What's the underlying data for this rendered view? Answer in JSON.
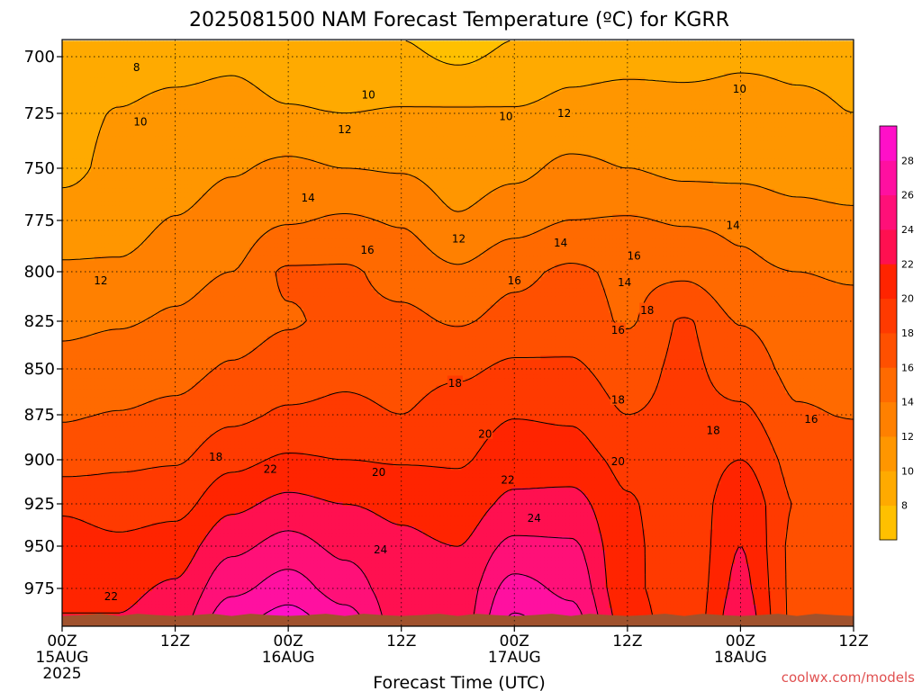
{
  "title": "2025081500 NAM Forecast Temperature (ºC) for KGRR",
  "credit": "coolwx.com/models",
  "chart_data": {
    "type": "heatmap",
    "title": "2025081500 NAM Forecast Temperature (ºC) for KGRR",
    "xlabel": "Forecast Time (UTC)",
    "ylabel": "",
    "x_range_hours": [
      0,
      84
    ],
    "y_range_hpa": [
      693,
      997
    ],
    "y_scale": "reversed-pressure",
    "grid": true,
    "y_ticks": [
      700,
      725,
      750,
      775,
      800,
      825,
      850,
      875,
      900,
      925,
      950,
      975
    ],
    "x_ticks": [
      {
        "hour": 0,
        "label": "00Z",
        "sub": "15AUG",
        "sub2": "2025"
      },
      {
        "hour": 12,
        "label": "12Z",
        "sub": "",
        "sub2": ""
      },
      {
        "hour": 24,
        "label": "00Z",
        "sub": "16AUG",
        "sub2": ""
      },
      {
        "hour": 36,
        "label": "12Z",
        "sub": "",
        "sub2": ""
      },
      {
        "hour": 48,
        "label": "00Z",
        "sub": "17AUG",
        "sub2": ""
      },
      {
        "hour": 60,
        "label": "12Z",
        "sub": "",
        "sub2": ""
      },
      {
        "hour": 72,
        "label": "00Z",
        "sub": "18AUG",
        "sub2": ""
      },
      {
        "hour": 84,
        "label": "12Z",
        "sub": "",
        "sub2": ""
      }
    ],
    "colorbar": {
      "levels": [
        6,
        8,
        10,
        12,
        14,
        16,
        18,
        20,
        22,
        24,
        26,
        28,
        30
      ],
      "labels": [
        "8",
        "10",
        "12",
        "14",
        "16",
        "18",
        "20",
        "22",
        "24",
        "26",
        "28"
      ],
      "colors": [
        "#ffc000",
        "#ffaa00",
        "#ff9600",
        "#ff8000",
        "#ff6a00",
        "#ff5000",
        "#ff3a00",
        "#ff2400",
        "#ff1050",
        "#ff1078",
        "#ff10a0",
        "#ff10c8"
      ]
    },
    "profile_levels_hpa": [
      700,
      725,
      750,
      775,
      800,
      825,
      850,
      875,
      900,
      925,
      950,
      975,
      990
    ],
    "profiles": [
      {
        "hour": 0,
        "temps": [
          9.3,
          9.2,
          9.4,
          11.0,
          12.3,
          13.5,
          14.7,
          15.8,
          17.0,
          19.6,
          21.0,
          21.5,
          22.0
        ]
      },
      {
        "hour": 6,
        "temps": [
          9.2,
          10.1,
          10.6,
          11.0,
          12.4,
          13.8,
          15.0,
          16.1,
          17.6,
          19.0,
          20.5,
          21.5,
          22.0
        ]
      },
      {
        "hour": 12,
        "temps": [
          9.3,
          10.6,
          11.0,
          12.1,
          13.3,
          14.3,
          15.3,
          16.5,
          17.8,
          19.3,
          21.0,
          22.3,
          23.0
        ]
      },
      {
        "hour": 18,
        "temps": [
          9.6,
          10.8,
          11.8,
          13.0,
          14.0,
          15.1,
          16.2,
          17.5,
          19.4,
          21.5,
          23.5,
          25.5,
          27.0
        ]
      },
      {
        "hour": 24,
        "temps": [
          9.0,
          10.2,
          12.5,
          13.8,
          16.3,
          15.8,
          16.9,
          18.3,
          20.3,
          22.6,
          24.8,
          27.0,
          28.5
        ]
      },
      {
        "hour": 30,
        "temps": [
          8.6,
          10.0,
          12.0,
          14.3,
          16.3,
          16.6,
          17.5,
          18.5,
          20.0,
          22.0,
          23.5,
          25.0,
          26.5
        ]
      },
      {
        "hour": 36,
        "temps": [
          8.5,
          10.2,
          11.8,
          13.8,
          15.2,
          16.5,
          17.3,
          18.0,
          19.8,
          21.5,
          22.5,
          22.8,
          23.0
        ]
      },
      {
        "hour": 42,
        "temps": [
          7.6,
          10.3,
          11.0,
          12.2,
          14.3,
          15.8,
          17.6,
          19.0,
          19.8,
          20.8,
          22.0,
          22.8,
          23.0
        ]
      },
      {
        "hour": 48,
        "temps": [
          8.5,
          10.2,
          11.5,
          13.2,
          15.5,
          16.7,
          18.4,
          19.9,
          21.0,
          22.5,
          24.5,
          26.8,
          28.0
        ]
      },
      {
        "hour": 54,
        "temps": [
          9.3,
          10.6,
          12.5,
          14.0,
          16.4,
          17.1,
          18.3,
          19.7,
          20.9,
          22.7,
          24.3,
          25.5,
          26.5
        ]
      },
      {
        "hour": 60,
        "temps": [
          9.4,
          10.9,
          12.0,
          14.2,
          15.5,
          15.8,
          17.0,
          18.0,
          19.5,
          20.2,
          20.5,
          20.5,
          21.0
        ]
      },
      {
        "hour": 66,
        "temps": [
          9.5,
          10.6,
          11.4,
          13.8,
          15.5,
          18.2,
          18.5,
          18.6,
          18.5,
          18.4,
          18.3,
          18.4,
          18.5
        ]
      },
      {
        "hour": 72,
        "temps": [
          9.8,
          10.5,
          11.3,
          13.7,
          14.3,
          15.9,
          17.0,
          18.4,
          20.0,
          21.5,
          22.0,
          22.5,
          23.0
        ]
      },
      {
        "hour": 78,
        "temps": [
          9.8,
          10.2,
          10.9,
          12.9,
          14.0,
          15.0,
          15.5,
          16.2,
          17.3,
          17.9,
          17.5,
          17.5,
          17.5
        ]
      },
      {
        "hour": 84,
        "temps": [
          9.8,
          10.0,
          10.5,
          12.6,
          13.7,
          14.8,
          15.3,
          15.9,
          16.9,
          17.5,
          17.0,
          17.0,
          17.0
        ]
      }
    ],
    "contour_labels": [
      {
        "hour": 7.9,
        "p": 704.6,
        "text": "8"
      },
      {
        "hour": 32.5,
        "p": 716.6,
        "text": "10"
      },
      {
        "hour": 8.3,
        "p": 728.6,
        "text": "10"
      },
      {
        "hour": 47.1,
        "p": 726.2,
        "text": "10"
      },
      {
        "hour": 71.9,
        "p": 714.1,
        "text": "10"
      },
      {
        "hour": 30.0,
        "p": 732.2,
        "text": "12"
      },
      {
        "hour": 53.3,
        "p": 724.8,
        "text": "12"
      },
      {
        "hour": 26.1,
        "p": 764.0,
        "text": "14"
      },
      {
        "hour": 42.1,
        "p": 783.7,
        "text": "12"
      },
      {
        "hour": 52.9,
        "p": 785.7,
        "text": "14"
      },
      {
        "hour": 71.2,
        "p": 777.2,
        "text": "14"
      },
      {
        "hour": 32.4,
        "p": 789.2,
        "text": "16"
      },
      {
        "hour": 4.1,
        "p": 804.4,
        "text": "12"
      },
      {
        "hour": 48.0,
        "p": 804.4,
        "text": "16"
      },
      {
        "hour": 60.7,
        "p": 792.2,
        "text": "16"
      },
      {
        "hour": 59.7,
        "p": 805.3,
        "text": "14"
      },
      {
        "hour": 62.1,
        "p": 819.3,
        "text": "18"
      },
      {
        "hour": 59.0,
        "p": 829.5,
        "text": "16"
      },
      {
        "hour": 41.7,
        "p": 857.6,
        "text": "18"
      },
      {
        "hour": 59.0,
        "p": 866.7,
        "text": "18"
      },
      {
        "hour": 44.9,
        "p": 885.4,
        "text": "20"
      },
      {
        "hour": 69.1,
        "p": 883.5,
        "text": "18"
      },
      {
        "hour": 79.5,
        "p": 877.3,
        "text": "16"
      },
      {
        "hour": 16.3,
        "p": 898.3,
        "text": "18"
      },
      {
        "hour": 22.1,
        "p": 905.1,
        "text": "22"
      },
      {
        "hour": 33.6,
        "p": 906.8,
        "text": "20"
      },
      {
        "hour": 59.0,
        "p": 900.7,
        "text": "20"
      },
      {
        "hour": 47.3,
        "p": 911.2,
        "text": "22"
      },
      {
        "hour": 50.1,
        "p": 933.2,
        "text": "24"
      },
      {
        "hour": 33.8,
        "p": 951.8,
        "text": "24"
      },
      {
        "hour": 5.2,
        "p": 979.7,
        "text": "22"
      }
    ],
    "ground": {
      "p_top": 991,
      "color": "#a0522d"
    }
  }
}
